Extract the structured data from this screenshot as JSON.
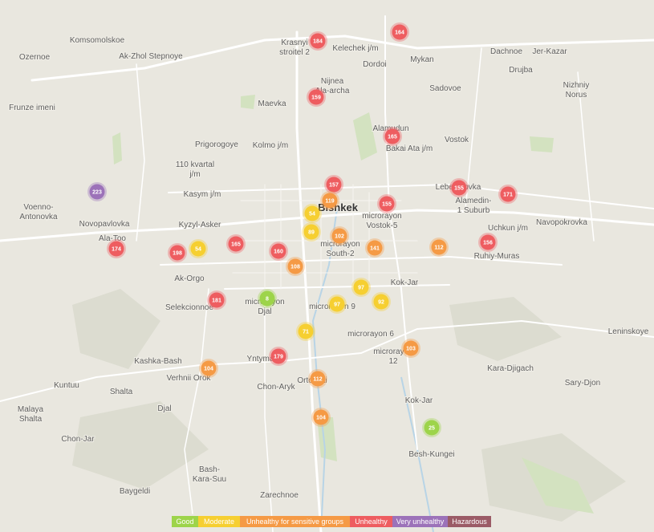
{
  "places": [
    [
      "Komsomolskoe"
    ],
    [
      "Ozernoe"
    ],
    [
      "Ak-Zhol Stepnoye"
    ],
    [
      "Krasnyi",
      "stroitel 2"
    ],
    [
      "Kelechek j/m"
    ],
    [
      "Dordoi"
    ],
    [
      "Mykan"
    ],
    [
      "Dachnoe"
    ],
    [
      "Jer-Kazar"
    ],
    [
      "Drujba"
    ],
    [
      "Nizhniy",
      "Norus"
    ],
    [
      "Sadovoe"
    ],
    [
      "Nijnea",
      "Ala-archa"
    ],
    [
      "Maevka"
    ],
    [
      "Frunze imeni"
    ],
    [
      "Alamudun"
    ],
    [
      "Bakai Ata j/m"
    ],
    [
      "Vostok"
    ],
    [
      "Prigorogoye"
    ],
    [
      "Kolmo j/m"
    ],
    [
      "110 kvartal",
      "j/m"
    ],
    [
      "Kasym j/m"
    ],
    [
      "Lebedinovka"
    ],
    [
      "Alamedin-",
      "1 Suburb"
    ],
    [
      "Bishkek"
    ],
    [
      "microrayon",
      "Vostok-5"
    ],
    [
      "Voenno-",
      "Antonovka"
    ],
    [
      "Novopavlovka"
    ],
    [
      "Kyzyl-Asker"
    ],
    [
      "Navopokrovka"
    ],
    [
      "Uchkun j/m"
    ],
    [
      "Ala-Too"
    ],
    [
      "microrayon",
      "South-2"
    ],
    [
      "Ruhiy-Muras"
    ],
    [
      "Ak-Orgo"
    ],
    [
      "Kok-Jar"
    ],
    [
      "Selekcionnoe"
    ],
    [
      "microrayon",
      "Djal"
    ],
    [
      "microrayon 9"
    ],
    [
      "microrayon 6"
    ],
    [
      "Leninskoye"
    ],
    [
      "microrayon",
      "12"
    ],
    [
      "Kashka-Bash"
    ],
    [
      "Yntymak"
    ],
    [
      "Verhnii Orok"
    ],
    [
      "Kara-Djigach"
    ],
    [
      "Orto-Sai"
    ],
    [
      "Sary-Djon"
    ],
    [
      "Kuntuu"
    ],
    [
      "Shalta"
    ],
    [
      "Chon-Aryk"
    ],
    [
      "Kok-Jar"
    ],
    [
      "Djal"
    ],
    [
      "Malaya",
      "Shalta"
    ],
    [
      "Chon-Jar"
    ],
    [
      "Besh-Kungei"
    ],
    [
      "Bash-",
      "Kara-Suu"
    ],
    [
      "Baygeldi"
    ],
    [
      "Zarechnoe"
    ]
  ],
  "markers": [
    184,
    164,
    159,
    165,
    157,
    119,
    155,
    155,
    171,
    223,
    54,
    89,
    102,
    141,
    112,
    156,
    174,
    198,
    54,
    165,
    160,
    108,
    97,
    97,
    92,
    181,
    8,
    71,
    179,
    103,
    104,
    112,
    104,
    25
  ],
  "legend": [
    {
      "label": "Good",
      "color": "#9dd44a"
    },
    {
      "label": "Moderate",
      "color": "#f6cf31"
    },
    {
      "label": "Unhealthy for sensitive groups",
      "color": "#f59a45"
    },
    {
      "label": "Unhealthy",
      "color": "#ee5d60"
    },
    {
      "label": "Very unhealthy",
      "color": "#9c72b9"
    },
    {
      "label": "Hazardous",
      "color": "#9b5b66"
    }
  ]
}
